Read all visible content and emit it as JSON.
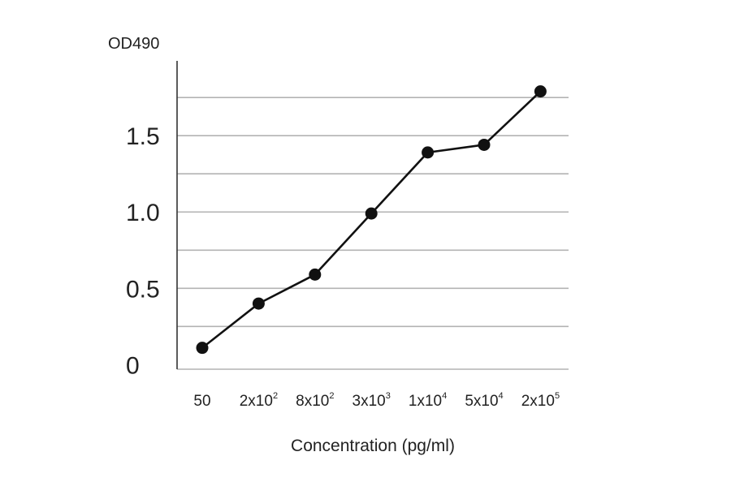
{
  "chart_data": {
    "type": "line",
    "title": "",
    "ylabel": "OD490",
    "xlabel": "Concentration (pg/ml)",
    "categories": [
      {
        "base": "50",
        "exp": ""
      },
      {
        "base": "2x10",
        "exp": "2"
      },
      {
        "base": "8x10",
        "exp": "2"
      },
      {
        "base": "3x10",
        "exp": "3"
      },
      {
        "base": "1x10",
        "exp": "4"
      },
      {
        "base": "5x10",
        "exp": "4"
      },
      {
        "base": "2x10",
        "exp": "5"
      }
    ],
    "y_ticks": [
      {
        "value": 0,
        "label": "0"
      },
      {
        "value": 0.5,
        "label": "0.5"
      },
      {
        "value": 1.0,
        "label": "1.0"
      },
      {
        "value": 1.5,
        "label": "1.5"
      }
    ],
    "ylim": [
      -0.03,
      1.99
    ],
    "grid_values": [
      0.25,
      0.5,
      0.75,
      1.0,
      1.25,
      1.5,
      1.75
    ],
    "grid": true,
    "series": [
      {
        "values": [
          0.11,
          0.4,
          0.59,
          0.99,
          1.39,
          1.44,
          1.79
        ]
      }
    ],
    "colors": {
      "line": "#111111",
      "marker": "#111111",
      "grid": "#b3b3b3",
      "axis": "#333333"
    }
  }
}
